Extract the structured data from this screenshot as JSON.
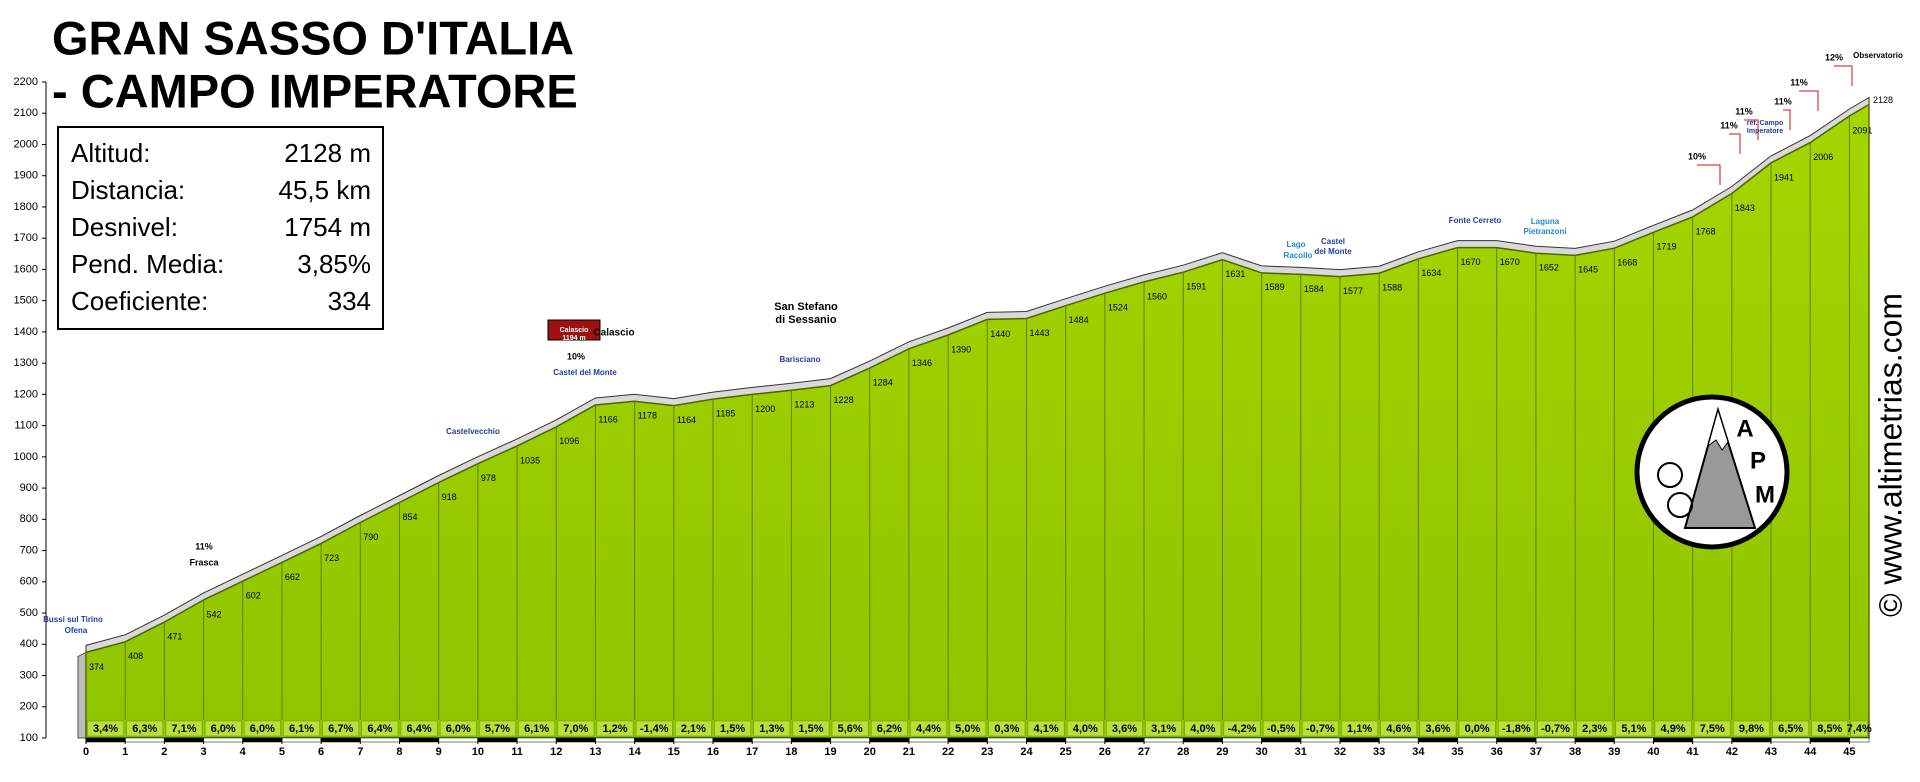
{
  "chart_data": {
    "type": "profile",
    "title": [
      "GRAN SASSO D'ITALIA",
      "- CAMPO IMPERATORE"
    ],
    "stats": [
      {
        "label": "Altitud:",
        "value": "2128 m"
      },
      {
        "label": "Distancia:",
        "value": "45,5 km"
      },
      {
        "label": "Desnivel:",
        "value": "1754 m"
      },
      {
        "label": "Pend. Media:",
        "value": "3,85%"
      },
      {
        "label": "Coeficiente:",
        "value": "334"
      }
    ],
    "x": [
      0,
      1,
      2,
      3,
      4,
      5,
      6,
      7,
      8,
      9,
      10,
      11,
      12,
      13,
      14,
      15,
      16,
      17,
      18,
      19,
      20,
      21,
      22,
      23,
      24,
      25,
      26,
      27,
      28,
      29,
      30,
      31,
      32,
      33,
      34,
      35,
      36,
      37,
      38,
      39,
      40,
      41,
      42,
      43,
      44,
      45,
      45.5
    ],
    "values": [
      374,
      408,
      471,
      542,
      602,
      662,
      723,
      790,
      854,
      918,
      978,
      1035,
      1096,
      1166,
      1178,
      1164,
      1185,
      1200,
      1213,
      1228,
      1284,
      1346,
      1390,
      1440,
      1443,
      1484,
      1524,
      1560,
      1591,
      1631,
      1589,
      1584,
      1577,
      1588,
      1634,
      1670,
      1670,
      1652,
      1645,
      1668,
      1719,
      1768,
      1843,
      1941,
      2006,
      2091,
      2128
    ],
    "gradient_labels": [
      "3,4%",
      "6,3%",
      "7,1%",
      "6,0%",
      "6,0%",
      "6,1%",
      "6,7%",
      "6,4%",
      "6,4%",
      "6,0%",
      "5,7%",
      "6,1%",
      "7,0%",
      "1,2%",
      "-1,4%",
      "2,1%",
      "1,5%",
      "1,3%",
      "1,5%",
      "5,6%",
      "6,2%",
      "4,4%",
      "5,0%",
      "0,3%",
      "4,1%",
      "4,0%",
      "3,6%",
      "3,1%",
      "4,0%",
      "-4,2%",
      "-0,5%",
      "-0,7%",
      "1,1%",
      "4,6%",
      "3,6%",
      "0,0%",
      "-1,8%",
      "-0,7%",
      "2,3%",
      "5,1%",
      "4,9%",
      "7,5%",
      "9,8%",
      "6,5%",
      "8,5%",
      "7,4%"
    ],
    "xlim": [
      0,
      45.5
    ],
    "xticks": [
      0,
      1,
      2,
      3,
      4,
      5,
      6,
      7,
      8,
      9,
      10,
      11,
      12,
      13,
      14,
      15,
      16,
      17,
      18,
      19,
      20,
      21,
      22,
      23,
      24,
      25,
      26,
      27,
      28,
      29,
      30,
      31,
      32,
      33,
      34,
      35,
      36,
      37,
      38,
      39,
      40,
      41,
      42,
      43,
      44,
      45
    ],
    "ylim": [
      100,
      2200
    ],
    "yticks": [
      100,
      200,
      300,
      400,
      500,
      600,
      700,
      800,
      900,
      1000,
      1100,
      1200,
      1300,
      1400,
      1500,
      1600,
      1700,
      1800,
      1900,
      2000,
      2100,
      2200
    ],
    "color": "#99cc00",
    "annotations": [
      "Bussi sul Tirino",
      "Ofena",
      "Frasca",
      "11%",
      "Castelvecchio",
      "Calascio",
      "Calascio",
      "1194 m",
      "10%",
      "Castel del Monte",
      "San Stefano",
      "di Sessanio",
      "Barisciano",
      "Lago",
      "Racollo",
      "Castel",
      "del Monte",
      "Fonte Cerreto",
      "Laguna",
      "Pietranzoni",
      "10%",
      "11%",
      "11%",
      "11%",
      "réf. Campo",
      "Imperatore",
      "11%",
      "12%",
      "Observatorio"
    ],
    "watermark": "© www.altimetrias.com",
    "logo_letters": [
      "A",
      "P",
      "M"
    ]
  }
}
